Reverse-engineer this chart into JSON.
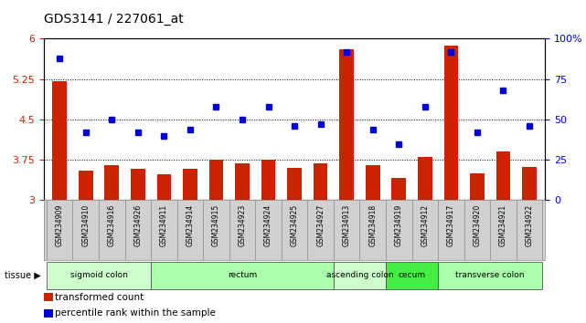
{
  "title": "GDS3141 / 227061_at",
  "samples": [
    "GSM234909",
    "GSM234910",
    "GSM234916",
    "GSM234926",
    "GSM234911",
    "GSM234914",
    "GSM234915",
    "GSM234923",
    "GSM234924",
    "GSM234925",
    "GSM234927",
    "GSM234913",
    "GSM234918",
    "GSM234919",
    "GSM234912",
    "GSM234917",
    "GSM234920",
    "GSM234921",
    "GSM234922"
  ],
  "bar_values": [
    5.22,
    3.55,
    3.65,
    3.58,
    3.48,
    3.58,
    3.75,
    3.68,
    3.75,
    3.6,
    3.68,
    5.8,
    3.65,
    3.42,
    3.8,
    5.88,
    3.5,
    3.9,
    3.62
  ],
  "dot_values": [
    88,
    42,
    50,
    42,
    40,
    44,
    58,
    50,
    58,
    46,
    47,
    92,
    44,
    35,
    58,
    92,
    42,
    68,
    46
  ],
  "tissues": [
    {
      "label": "sigmoid colon",
      "start": 0,
      "end": 4,
      "color": "#ccffcc"
    },
    {
      "label": "rectum",
      "start": 4,
      "end": 11,
      "color": "#aaffaa"
    },
    {
      "label": "ascending colon",
      "start": 11,
      "end": 13,
      "color": "#ccffcc"
    },
    {
      "label": "cecum",
      "start": 13,
      "end": 15,
      "color": "#44ee44"
    },
    {
      "label": "transverse colon",
      "start": 15,
      "end": 19,
      "color": "#aaffaa"
    }
  ],
  "ylim_left": [
    3.0,
    6.0
  ],
  "ylim_right": [
    0,
    100
  ],
  "yticks_left": [
    3.0,
    3.75,
    4.5,
    5.25,
    6.0
  ],
  "ytick_labels_left": [
    "3",
    "3.75",
    "4.5",
    "5.25",
    "6"
  ],
  "yticks_right": [
    0,
    25,
    50,
    75,
    100
  ],
  "ytick_labels_right": [
    "0",
    "25",
    "50",
    "75",
    "100%"
  ],
  "hlines": [
    3.75,
    4.5,
    5.25
  ],
  "bar_color": "#cc2200",
  "dot_color": "#0000dd",
  "bar_bottom": 3.0,
  "legend_items": [
    {
      "color": "#cc2200",
      "label": "transformed count"
    },
    {
      "color": "#0000dd",
      "label": "percentile rank within the sample"
    }
  ]
}
